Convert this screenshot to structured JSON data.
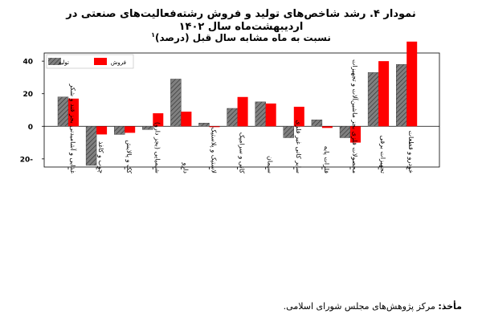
{
  "title": "نمودار ۴. رشد شاخص‌های تولید و فروش رشته‌فعالیت‌های صنعتی در اردیبهشت‌ماه سال ۱۴۰۲",
  "subtitle": "نسبت به ماه مشابه سال قبل (درصد)",
  "footnote_mark": "۱",
  "source_label": "مأخذ:",
  "source_text": " مرکز پژوهش‌های مجلس شورای اسلامی.",
  "colors": {
    "production": "#808080",
    "sales": "#ff0000",
    "hatch": "#333333"
  },
  "chart_data": {
    "type": "bar",
    "legend_position": "top-left",
    "grid": false,
    "ylim": [
      -25,
      45
    ],
    "yticks": [
      {
        "value": 40,
        "label": "40"
      },
      {
        "value": 20,
        "label": "20"
      },
      {
        "value": 0,
        "label": "0"
      },
      {
        "value": -20,
        "label": "20-"
      }
    ],
    "categories": [
      "غذایی و آشامیدنی بجز قند و شکر",
      "چوب و کاغذ",
      "کک و پالایش",
      "شیمیایی (بجز دارو)",
      "دارو",
      "لاستیک و پلاستیک",
      "کانی و سرامیک",
      "سیمان",
      "سایر کانی غیر فلزی",
      "فلزات پایه",
      "محصولات فلزی بجز ماشین‌آلات و تجهیزات",
      "تجهیزات برقی",
      "خودرو و قطعات"
    ],
    "series": [
      {
        "name": "تولید",
        "values": [
          18,
          -24,
          -5,
          -2,
          29,
          2,
          11,
          15,
          -7,
          4,
          -7,
          33,
          38
        ]
      },
      {
        "name": "فروش",
        "values": [
          17,
          -5,
          -4,
          8,
          9,
          -0.5,
          18,
          14,
          12,
          -1,
          -10,
          40,
          52
        ]
      }
    ]
  }
}
